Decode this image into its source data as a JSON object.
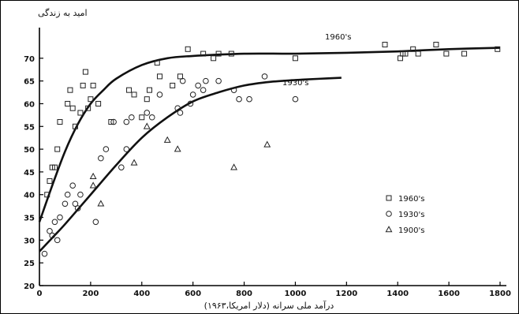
{
  "chart_data": {
    "type": "scatter",
    "title": "",
    "ylabel": "امید به زندگی",
    "xlabel": "درآمد ملی سرانه (دلار امریکا،۱۹۶۳)",
    "xlim": [
      0,
      1800
    ],
    "ylim": [
      20,
      75
    ],
    "x_ticks": [
      0,
      200,
      400,
      600,
      800,
      1000,
      1200,
      1400,
      1600,
      1800
    ],
    "y_ticks": [
      20,
      25,
      30,
      35,
      40,
      45,
      50,
      55,
      60,
      65,
      70
    ],
    "grid": false,
    "legend_position": "right",
    "series": [
      {
        "name": "1960's",
        "marker": "square",
        "points": [
          [
            30,
            40
          ],
          [
            40,
            43
          ],
          [
            50,
            46
          ],
          [
            60,
            46
          ],
          [
            70,
            50
          ],
          [
            80,
            56
          ],
          [
            110,
            60
          ],
          [
            120,
            63
          ],
          [
            130,
            59
          ],
          [
            140,
            55
          ],
          [
            160,
            58
          ],
          [
            170,
            64
          ],
          [
            180,
            67
          ],
          [
            190,
            59
          ],
          [
            200,
            61
          ],
          [
            210,
            64
          ],
          [
            230,
            60
          ],
          [
            280,
            56
          ],
          [
            350,
            63
          ],
          [
            370,
            62
          ],
          [
            400,
            57
          ],
          [
            420,
            61
          ],
          [
            430,
            63
          ],
          [
            460,
            69
          ],
          [
            470,
            66
          ],
          [
            520,
            64
          ],
          [
            550,
            66
          ],
          [
            580,
            72
          ],
          [
            640,
            71
          ],
          [
            680,
            70
          ],
          [
            700,
            71
          ],
          [
            750,
            71
          ],
          [
            1000,
            70
          ],
          [
            1350,
            73
          ],
          [
            1410,
            70
          ],
          [
            1420,
            71
          ],
          [
            1430,
            71
          ],
          [
            1460,
            72
          ],
          [
            1480,
            71
          ],
          [
            1550,
            73
          ],
          [
            1590,
            71
          ],
          [
            1660,
            71
          ],
          [
            1790,
            72
          ]
        ],
        "fit_curve": [
          [
            0,
            34
          ],
          [
            50,
            42
          ],
          [
            100,
            49.5
          ],
          [
            150,
            55.5
          ],
          [
            200,
            60
          ],
          [
            250,
            63
          ],
          [
            300,
            65.5
          ],
          [
            400,
            68.5
          ],
          [
            500,
            70
          ],
          [
            600,
            70.5
          ],
          [
            800,
            71
          ],
          [
            1000,
            71
          ],
          [
            1200,
            71.2
          ],
          [
            1400,
            71.5
          ],
          [
            1600,
            72
          ],
          [
            1800,
            72.3
          ]
        ],
        "curve_label": "1960's"
      },
      {
        "name": "1930's",
        "marker": "circle",
        "points": [
          [
            20,
            27
          ],
          [
            40,
            32
          ],
          [
            50,
            31
          ],
          [
            60,
            34
          ],
          [
            70,
            30
          ],
          [
            80,
            35
          ],
          [
            100,
            38
          ],
          [
            110,
            40
          ],
          [
            130,
            42
          ],
          [
            140,
            38
          ],
          [
            150,
            37
          ],
          [
            160,
            40
          ],
          [
            220,
            34
          ],
          [
            240,
            48
          ],
          [
            260,
            50
          ],
          [
            290,
            56
          ],
          [
            320,
            46
          ],
          [
            340,
            50
          ],
          [
            340,
            56
          ],
          [
            360,
            57
          ],
          [
            420,
            58
          ],
          [
            440,
            57
          ],
          [
            470,
            62
          ],
          [
            540,
            59
          ],
          [
            550,
            58
          ],
          [
            560,
            65
          ],
          [
            590,
            60
          ],
          [
            600,
            62
          ],
          [
            620,
            64
          ],
          [
            640,
            63
          ],
          [
            650,
            65
          ],
          [
            700,
            65
          ],
          [
            760,
            63
          ],
          [
            780,
            61
          ],
          [
            820,
            61
          ],
          [
            880,
            66
          ],
          [
            1000,
            61
          ]
        ],
        "fit_curve": [
          [
            0,
            27.5
          ],
          [
            50,
            30.5
          ],
          [
            100,
            33.5
          ],
          [
            200,
            40
          ],
          [
            300,
            46.5
          ],
          [
            400,
            52.5
          ],
          [
            500,
            57
          ],
          [
            600,
            60.5
          ],
          [
            700,
            62.5
          ],
          [
            800,
            64
          ],
          [
            900,
            64.8
          ],
          [
            1000,
            65.2
          ],
          [
            1100,
            65.5
          ],
          [
            1180,
            65.7
          ]
        ],
        "curve_label": "1930's"
      },
      {
        "name": "1900's",
        "marker": "triangle",
        "points": [
          [
            210,
            44
          ],
          [
            210,
            42
          ],
          [
            240,
            38
          ],
          [
            370,
            47
          ],
          [
            420,
            55
          ],
          [
            500,
            52
          ],
          [
            540,
            50
          ],
          [
            760,
            46
          ],
          [
            890,
            51
          ]
        ]
      }
    ]
  }
}
